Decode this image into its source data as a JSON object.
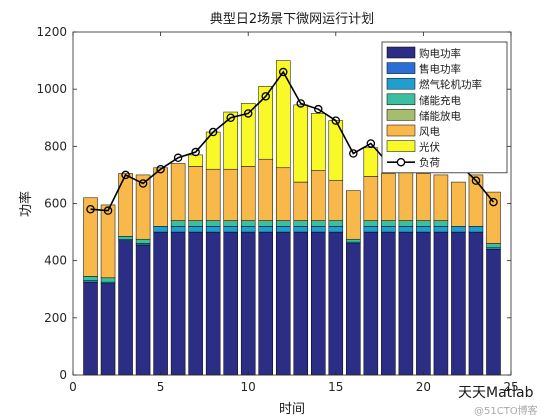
{
  "chart_data": {
    "type": "bar",
    "title": "典型日2场景下微网运行计划",
    "xlabel": "时间",
    "ylabel": "功率",
    "xlim": [
      0,
      25
    ],
    "ylim": [
      0,
      1200
    ],
    "xticks": [
      0,
      5,
      10,
      15,
      20,
      25
    ],
    "yticks": [
      0,
      200,
      400,
      600,
      800,
      1000,
      1200
    ],
    "legend_position": "top-right",
    "x": [
      1,
      2,
      3,
      4,
      5,
      6,
      7,
      8,
      9,
      10,
      11,
      12,
      13,
      14,
      15,
      16,
      17,
      18,
      19,
      20,
      21,
      22,
      23,
      24
    ],
    "series": [
      {
        "name": "购电功率",
        "color": "#2c2d84",
        "values": [
          325,
          320,
          470,
          455,
          500,
          500,
          500,
          500,
          500,
          500,
          500,
          500,
          500,
          500,
          500,
          460,
          500,
          500,
          500,
          500,
          500,
          500,
          500,
          440
        ]
      },
      {
        "name": "售电功率",
        "color": "#2a6fd6",
        "values": [
          0,
          0,
          0,
          0,
          0,
          0,
          0,
          0,
          0,
          0,
          0,
          0,
          0,
          0,
          0,
          0,
          0,
          0,
          0,
          0,
          0,
          0,
          0,
          0
        ]
      },
      {
        "name": "燃气轮机功率",
        "color": "#1f9fd0",
        "values": [
          5,
          5,
          5,
          5,
          20,
          20,
          20,
          20,
          20,
          20,
          20,
          20,
          20,
          20,
          20,
          5,
          20,
          20,
          20,
          20,
          20,
          20,
          20,
          5
        ]
      },
      {
        "name": "储能充电",
        "color": "#3cbfa0",
        "values": [
          15,
          15,
          10,
          15,
          0,
          20,
          20,
          20,
          20,
          20,
          20,
          20,
          20,
          20,
          20,
          10,
          20,
          20,
          20,
          20,
          20,
          0,
          0,
          15
        ]
      },
      {
        "name": "储能放电",
        "color": "#a4bd6e",
        "values": [
          0,
          0,
          0,
          0,
          0,
          0,
          0,
          0,
          0,
          0,
          0,
          0,
          0,
          0,
          0,
          0,
          0,
          0,
          0,
          0,
          0,
          0,
          0,
          0
        ]
      },
      {
        "name": "风电",
        "color": "#f8b94a",
        "values": [
          275,
          255,
          220,
          225,
          205,
          200,
          190,
          180,
          180,
          190,
          215,
          185,
          135,
          175,
          140,
          170,
          155,
          165,
          170,
          165,
          160,
          155,
          180,
          180
        ]
      },
      {
        "name": "光伏",
        "color": "#f9f92a",
        "values": [
          0,
          0,
          0,
          0,
          0,
          0,
          40,
          130,
          200,
          220,
          255,
          375,
          270,
          200,
          210,
          0,
          100,
          0,
          0,
          0,
          0,
          0,
          0,
          0
        ]
      }
    ],
    "load": {
      "name": "负荷",
      "color": "#000000",
      "values": [
        580,
        575,
        700,
        670,
        720,
        760,
        780,
        850,
        900,
        915,
        975,
        1060,
        950,
        930,
        890,
        775,
        810,
        740,
        740,
        740,
        740,
        740,
        680,
        605
      ]
    }
  },
  "watermark": {
    "main": "天天Matlab",
    "sub": "@51CTO博客"
  }
}
